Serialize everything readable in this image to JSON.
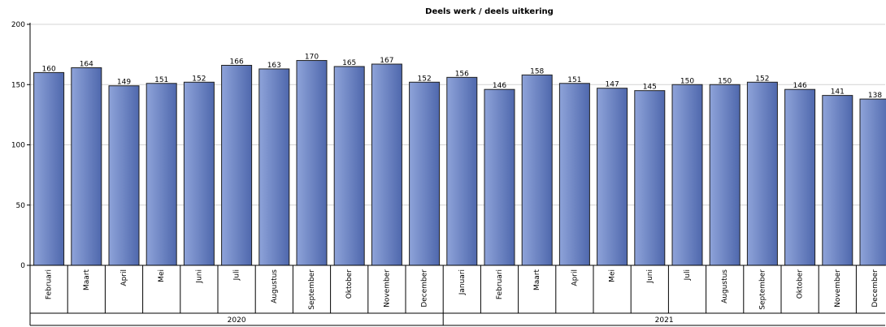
{
  "chart_data": {
    "type": "bar",
    "title": "Deels werk / deels uitkering",
    "ylim": [
      0,
      200
    ],
    "yticks": [
      0,
      50,
      100,
      150,
      200
    ],
    "grid": true,
    "bar_color_light": "#8ea3d9",
    "bar_color_dark": "#4f68ad",
    "groups": [
      {
        "label": "2020",
        "categories": [
          "Februari",
          "Maart",
          "April",
          "Mei",
          "Juni",
          "Juli",
          "Augustus",
          "September",
          "Oktober",
          "November",
          "December"
        ]
      },
      {
        "label": "2021",
        "categories": [
          "Januari",
          "Februari",
          "Maart",
          "April",
          "Mei",
          "Juni",
          "Juli",
          "Augustus",
          "September",
          "Oktober",
          "November",
          "December"
        ]
      }
    ],
    "values": [
      160,
      164,
      149,
      151,
      152,
      166,
      163,
      170,
      165,
      167,
      152,
      156,
      146,
      158,
      151,
      147,
      145,
      150,
      150,
      152,
      146,
      141,
      138
    ]
  }
}
